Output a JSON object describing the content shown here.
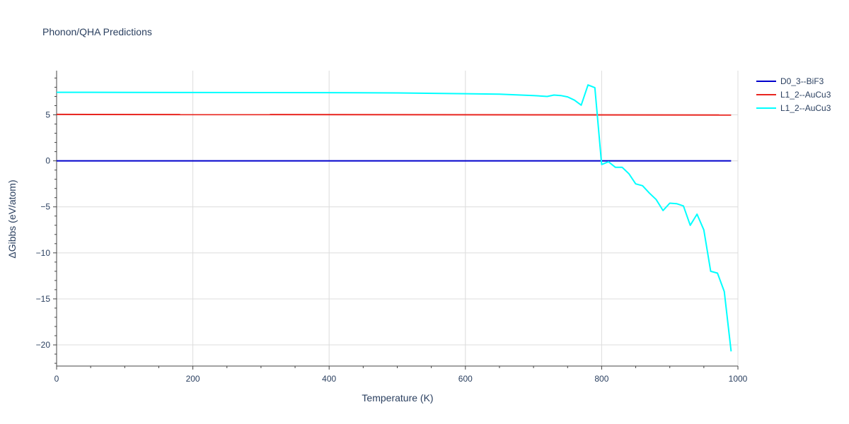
{
  "chart_data": {
    "type": "line",
    "title": "Phonon/QHA Predictions",
    "xlabel": "Temperature (K)",
    "ylabel": "ΔGibbs (eV/atom)",
    "xlim": [
      0,
      1000
    ],
    "ylim": [
      -22.3,
      9.8
    ],
    "xticks": [
      0,
      200,
      400,
      600,
      800,
      1000
    ],
    "xtick_labels": [
      "0",
      "200",
      "400",
      "600",
      "800",
      "1000"
    ],
    "yticks": [
      -20,
      -15,
      -10,
      -5,
      0,
      5
    ],
    "ytick_labels": [
      "−20",
      "−15",
      "−10",
      "−5",
      "0",
      "5"
    ],
    "grid": true,
    "legend_position": "top-right",
    "series": [
      {
        "name": "D0_3--BiF3",
        "color": "#0000cc",
        "x": [
          0,
          990
        ],
        "y": [
          0,
          0
        ]
      },
      {
        "name": "L1_2--AuCu3",
        "color": "#e8251f",
        "x": [
          0,
          990
        ],
        "y": [
          5.05,
          4.98
        ]
      },
      {
        "name": "L1_2--AuCu3",
        "color": "#00ffff",
        "x": [
          0,
          100,
          200,
          300,
          400,
          500,
          600,
          650,
          700,
          720,
          730,
          740,
          750,
          760,
          770,
          780,
          790,
          800,
          810,
          820,
          830,
          840,
          850,
          860,
          870,
          880,
          890,
          900,
          910,
          920,
          930,
          940,
          950,
          960,
          970,
          980,
          990
        ],
        "y": [
          7.45,
          7.44,
          7.43,
          7.42,
          7.41,
          7.38,
          7.3,
          7.25,
          7.1,
          7.0,
          7.15,
          7.1,
          6.95,
          6.6,
          6.05,
          8.25,
          7.95,
          -0.4,
          -0.1,
          -0.7,
          -0.7,
          -1.4,
          -2.5,
          -2.7,
          -3.5,
          -4.2,
          -5.4,
          -4.6,
          -4.65,
          -4.9,
          -7.0,
          -5.8,
          -7.5,
          -12.0,
          -12.2,
          -14.2,
          -20.7
        ]
      }
    ]
  }
}
